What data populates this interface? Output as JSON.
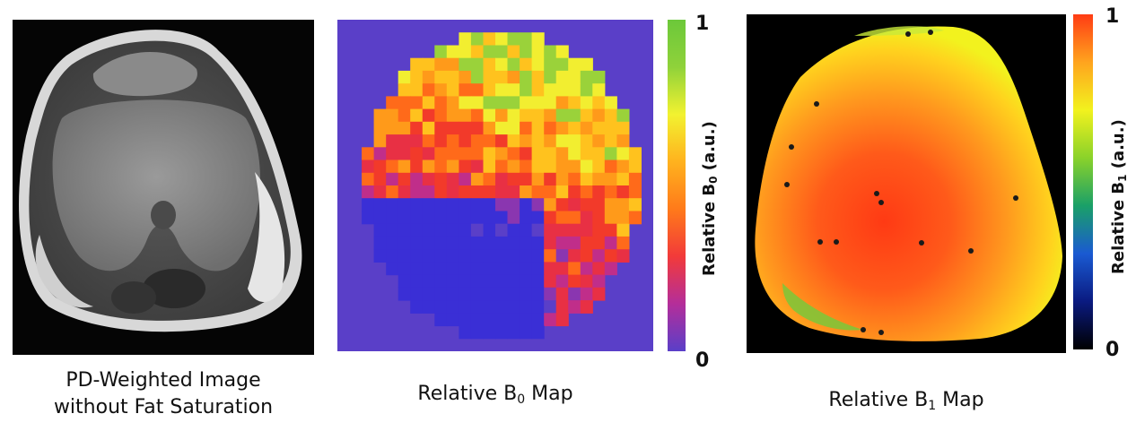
{
  "panels": [
    {
      "id": "pd",
      "caption_line1": "PD-Weighted Image",
      "caption_line2": "without Fat Saturation"
    },
    {
      "id": "b0",
      "caption_pre": "Relative B",
      "caption_sub": "0",
      "caption_post": " Map",
      "colorbar": {
        "label_pre": "Relative B",
        "label_sub": "0",
        "label_post": " (a.u.)",
        "min_label": "0",
        "max_label": "1",
        "colors": [
          "#5a3fc8",
          "#b42e9a",
          "#f23a3a",
          "#ff7a1a",
          "#ffb21e",
          "#f2f230",
          "#8fd23a",
          "#6cc83a"
        ]
      }
    },
    {
      "id": "b1",
      "caption_pre": "Relative B",
      "caption_sub": "1",
      "caption_post": " Map",
      "colorbar": {
        "label_pre": "Relative B",
        "label_sub": "1",
        "label_post": " (a.u.)",
        "min_label": "0",
        "max_label": "1",
        "colors": [
          "#000000",
          "#0a1a80",
          "#1a5ad2",
          "#1aa068",
          "#8ad22a",
          "#f2f21e",
          "#ffa41e",
          "#ff3c14"
        ]
      }
    }
  ]
}
